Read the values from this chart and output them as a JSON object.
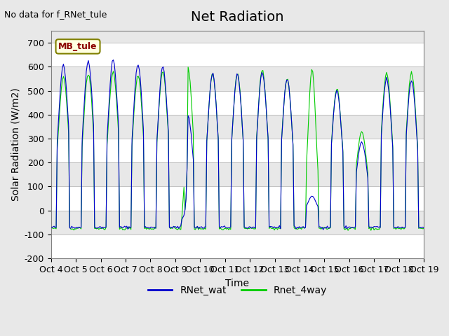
{
  "title": "Net Radiation",
  "xlabel": "Time",
  "ylabel": "Solar Radiation (W/m2)",
  "ylim": [
    -200,
    750
  ],
  "yticks": [
    -200,
    -100,
    0,
    100,
    200,
    300,
    400,
    500,
    600,
    700
  ],
  "x_tick_labels": [
    "Oct 4",
    "Oct 5",
    "Oct 6",
    "Oct 7",
    "Oct 8",
    "Oct 9",
    "Oct 10",
    "Oct 11",
    "Oct 12",
    "Oct 13",
    "Oct 14",
    "Oct 15",
    "Oct 16",
    "Oct 17",
    "Oct 18",
    "Oct 19"
  ],
  "color_blue": "#0000CD",
  "color_green": "#00CC00",
  "bg_color": "#E8E8E8",
  "no_data_text": "No data for f_RNet_tule",
  "legend_box_text": "MB_tule",
  "legend_line1": "RNet_wat",
  "legend_line2": "Rnet_4way",
  "title_fontsize": 14,
  "label_fontsize": 10,
  "tick_fontsize": 9
}
